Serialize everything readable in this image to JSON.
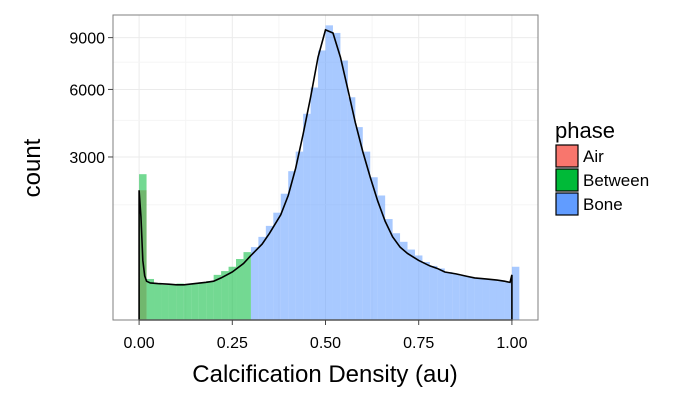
{
  "chart_data": {
    "type": "histogram",
    "xlabel": "Calcification Density (au)",
    "ylabel": "count",
    "y_scale": "sqrt",
    "xlim": [
      -0.07,
      1.07
    ],
    "ylim": [
      0,
      10500
    ],
    "x_ticks": [
      0.0,
      0.25,
      0.5,
      0.75,
      1.0
    ],
    "x_tick_labels": [
      "0.00",
      "0.25",
      "0.50",
      "0.75",
      "1.00"
    ],
    "y_ticks": [
      3000,
      6000,
      9000
    ],
    "y_tick_labels": [
      "3000",
      "6000",
      "9000"
    ],
    "legend": {
      "title": "phase",
      "position": "right",
      "entries": [
        {
          "name": "Air",
          "color": "#F8766D"
        },
        {
          "name": "Between",
          "color": "#00BA38"
        },
        {
          "name": "Bone",
          "color": "#619CFF"
        }
      ]
    },
    "bin_width": 0.02,
    "series": [
      {
        "name": "Air",
        "color": "#F8766D",
        "bins": [
          [
            0.0,
            1900
          ],
          [
            0.02,
            0
          ]
        ]
      },
      {
        "name": "Between",
        "color": "#00BA38",
        "bins": [
          [
            0.0,
            2400
          ],
          [
            0.02,
            190
          ],
          [
            0.04,
            150
          ],
          [
            0.06,
            140
          ],
          [
            0.08,
            140
          ],
          [
            0.1,
            150
          ],
          [
            0.12,
            140
          ],
          [
            0.14,
            150
          ],
          [
            0.16,
            160
          ],
          [
            0.18,
            170
          ],
          [
            0.2,
            230
          ],
          [
            0.22,
            270
          ],
          [
            0.24,
            320
          ],
          [
            0.26,
            420
          ],
          [
            0.28,
            520
          ]
        ]
      },
      {
        "name": "Bone",
        "color": "#619CFF",
        "bins": [
          [
            0.3,
            600
          ],
          [
            0.32,
            780
          ],
          [
            0.34,
            1000
          ],
          [
            0.36,
            1300
          ],
          [
            0.38,
            1800
          ],
          [
            0.4,
            2500
          ],
          [
            0.42,
            3200
          ],
          [
            0.44,
            4800
          ],
          [
            0.46,
            6100
          ],
          [
            0.48,
            8200
          ],
          [
            0.5,
            9800
          ],
          [
            0.52,
            9300
          ],
          [
            0.54,
            7600
          ],
          [
            0.56,
            5600
          ],
          [
            0.58,
            4200
          ],
          [
            0.6,
            3200
          ],
          [
            0.62,
            2300
          ],
          [
            0.64,
            1750
          ],
          [
            0.66,
            1150
          ],
          [
            0.68,
            850
          ],
          [
            0.7,
            690
          ],
          [
            0.72,
            560
          ],
          [
            0.74,
            470
          ],
          [
            0.76,
            380
          ],
          [
            0.78,
            330
          ],
          [
            0.8,
            300
          ],
          [
            0.82,
            260
          ],
          [
            0.84,
            240
          ],
          [
            0.86,
            220
          ],
          [
            0.88,
            210
          ],
          [
            0.9,
            200
          ],
          [
            0.92,
            190
          ],
          [
            0.94,
            185
          ],
          [
            0.96,
            170
          ],
          [
            0.98,
            160
          ],
          [
            1.0,
            320
          ]
        ]
      }
    ],
    "density_line": {
      "x": [
        0.0,
        0.005,
        0.01,
        0.015,
        0.02,
        0.03,
        0.05,
        0.08,
        0.1,
        0.12,
        0.15,
        0.18,
        0.2,
        0.22,
        0.25,
        0.28,
        0.3,
        0.33,
        0.35,
        0.38,
        0.4,
        0.42,
        0.44,
        0.46,
        0.48,
        0.5,
        0.52,
        0.54,
        0.56,
        0.58,
        0.6,
        0.62,
        0.64,
        0.66,
        0.68,
        0.7,
        0.72,
        0.75,
        0.78,
        0.8,
        0.82,
        0.85,
        0.88,
        0.9,
        0.93,
        0.96,
        0.98,
        0.995,
        1.0
      ],
      "y": [
        1900,
        1200,
        400,
        220,
        170,
        155,
        150,
        145,
        140,
        140,
        150,
        160,
        170,
        200,
        260,
        360,
        470,
        650,
        850,
        1250,
        1750,
        2600,
        3900,
        5600,
        7800,
        9500,
        9300,
        7800,
        6000,
        4400,
        3200,
        2300,
        1600,
        1100,
        780,
        600,
        500,
        400,
        330,
        300,
        260,
        240,
        215,
        200,
        190,
        180,
        170,
        160,
        230
      ]
    }
  }
}
